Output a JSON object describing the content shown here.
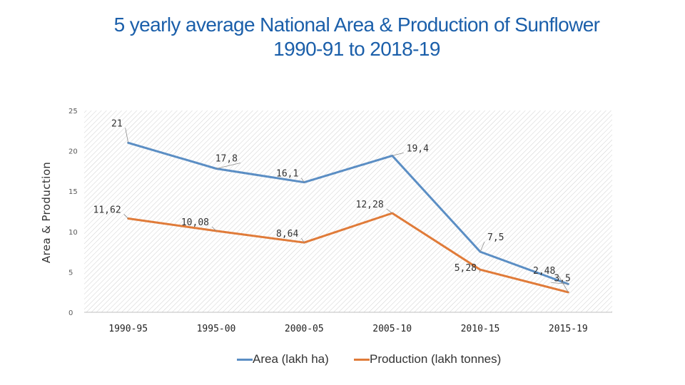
{
  "chart_data": {
    "type": "line",
    "title_lines": [
      "5 yearly average National Area & Production of Sunflower",
      "1990-91 to 2018-19"
    ],
    "xlabel": "",
    "ylabel": "Area & Production",
    "categories": [
      "1990-95",
      "1995-00",
      "2000-05",
      "2005-10",
      "2010-15",
      "2015-19"
    ],
    "ylim": [
      0,
      25
    ],
    "yticks": [
      0,
      5,
      10,
      15,
      20,
      25
    ],
    "grid": "diagonal hatch background",
    "legend_position": "bottom",
    "series": [
      {
        "name": "Area (lakh ha)",
        "color": "#5b8ec4",
        "values": [
          21,
          17.8,
          16.1,
          19.4,
          7.5,
          3.5
        ],
        "labels": [
          "21",
          "17,8",
          "16,1",
          "19,4",
          "7,5",
          "3,5"
        ]
      },
      {
        "name": "Production (lakh tonnes)",
        "color": "#e07b39",
        "values": [
          11.62,
          10.08,
          8.64,
          12.28,
          5.28,
          2.48
        ],
        "labels": [
          "11,62",
          "10,08",
          "8,64",
          "12,28",
          "5,28",
          "2,48"
        ]
      }
    ]
  }
}
